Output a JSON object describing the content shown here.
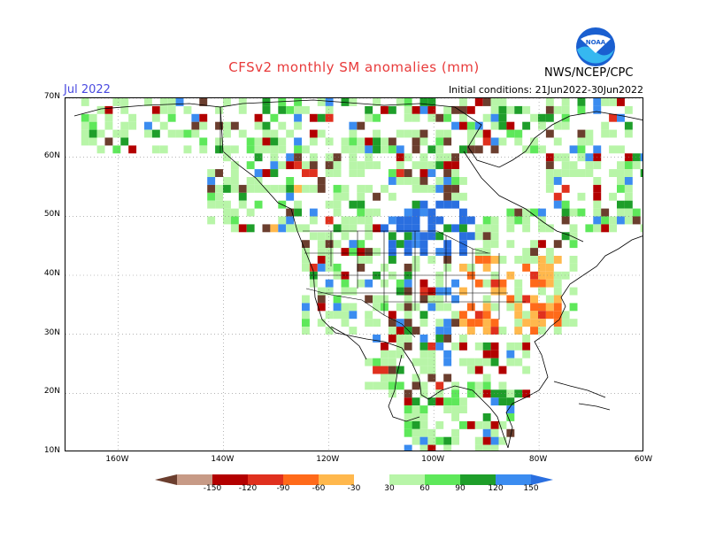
{
  "header": {
    "title": "CFSv2 monthly SM anomalies (mm)",
    "month": "Jul 2022",
    "initial_conditions": "Initial conditions: 21Jun2022-30Jun2022",
    "agency": "NWS/NCEP/CPC",
    "logo_text": "NOAA"
  },
  "map": {
    "lat_labels": [
      "70N",
      "60N",
      "50N",
      "40N",
      "30N",
      "20N",
      "10N"
    ],
    "lon_labels": [
      "160W",
      "140W",
      "120W",
      "100W",
      "80W",
      "60W"
    ],
    "lat_values": [
      70,
      60,
      50,
      40,
      30,
      20,
      10
    ],
    "lon_values": [
      -160,
      -140,
      -120,
      -100,
      -80,
      -60
    ]
  },
  "legend": {
    "labels": [
      "-150",
      "-120",
      "-90",
      "-60",
      "-30",
      "30",
      "60",
      "90",
      "120",
      "150"
    ],
    "colors": [
      "#6b3e2e",
      "#c79a86",
      "#b30000",
      "#e0301e",
      "#ff6a1a",
      "#ffb84d",
      "#ffffff",
      "#b8f5a8",
      "#5ee85a",
      "#1e9e2a",
      "#3b8cf0",
      "#2a6fe0"
    ]
  },
  "colors": {
    "title": "#e83a3a",
    "month": "#4a4ae0"
  }
}
